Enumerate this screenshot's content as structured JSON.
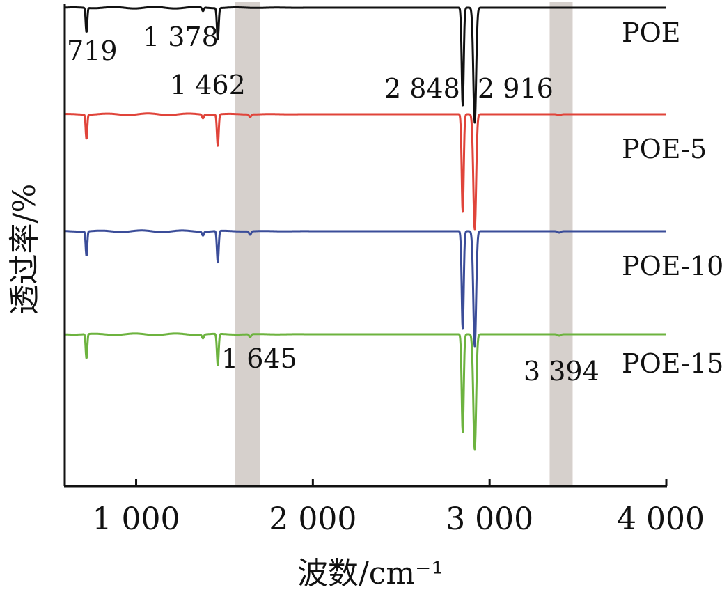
{
  "chart_data": {
    "type": "line",
    "xlabel": "波数/cm⁻¹",
    "ylabel": "透过率/%",
    "xlim": [
      600,
      4000
    ],
    "x_ticks": [
      {
        "value": 1000,
        "label": "1 000"
      },
      {
        "value": 2000,
        "label": "2 000"
      },
      {
        "value": 3000,
        "label": "3 000"
      },
      {
        "value": 4000,
        "label": "4 000"
      }
    ],
    "grid": false,
    "legend": "series names printed at right end of each trace",
    "highlight_bands": [
      [
        1560,
        1700
      ],
      [
        3340,
        3470
      ]
    ],
    "highlight_color": "#d6d0cc",
    "series": [
      {
        "name": "POE",
        "color": "#111111",
        "baseline": 0,
        "bands": [
          [
            719,
            1.0
          ],
          [
            1378,
            0.45
          ],
          [
            1462,
            1.0
          ],
          [
            1645,
            0.0
          ],
          [
            2848,
            1.0
          ],
          [
            2916,
            1.0
          ],
          [
            3394,
            0.0
          ]
        ]
      },
      {
        "name": "POE-5",
        "color": "#e0443a",
        "baseline": 1,
        "bands": [
          [
            719,
            1.0
          ],
          [
            1378,
            0.45
          ],
          [
            1462,
            1.0
          ],
          [
            1645,
            0.3
          ],
          [
            2848,
            1.0
          ],
          [
            2916,
            1.0
          ],
          [
            3394,
            0.15
          ]
        ]
      },
      {
        "name": "POE-10",
        "color": "#3b4d99",
        "baseline": 2,
        "bands": [
          [
            719,
            1.0
          ],
          [
            1378,
            0.45
          ],
          [
            1462,
            1.0
          ],
          [
            1645,
            0.4
          ],
          [
            2848,
            1.0
          ],
          [
            2916,
            1.0
          ],
          [
            3394,
            0.2
          ]
        ]
      },
      {
        "name": "POE-15",
        "color": "#6db33f",
        "baseline": 3,
        "bands": [
          [
            719,
            1.0
          ],
          [
            1378,
            0.45
          ],
          [
            1462,
            1.0
          ],
          [
            1645,
            0.35
          ],
          [
            2848,
            1.0
          ],
          [
            2916,
            1.0
          ],
          [
            3394,
            0.2
          ]
        ]
      }
    ],
    "annotations": [
      "719",
      "1 378",
      "1 462",
      "2 848",
      "2 916",
      "1 645",
      "3 394"
    ]
  }
}
